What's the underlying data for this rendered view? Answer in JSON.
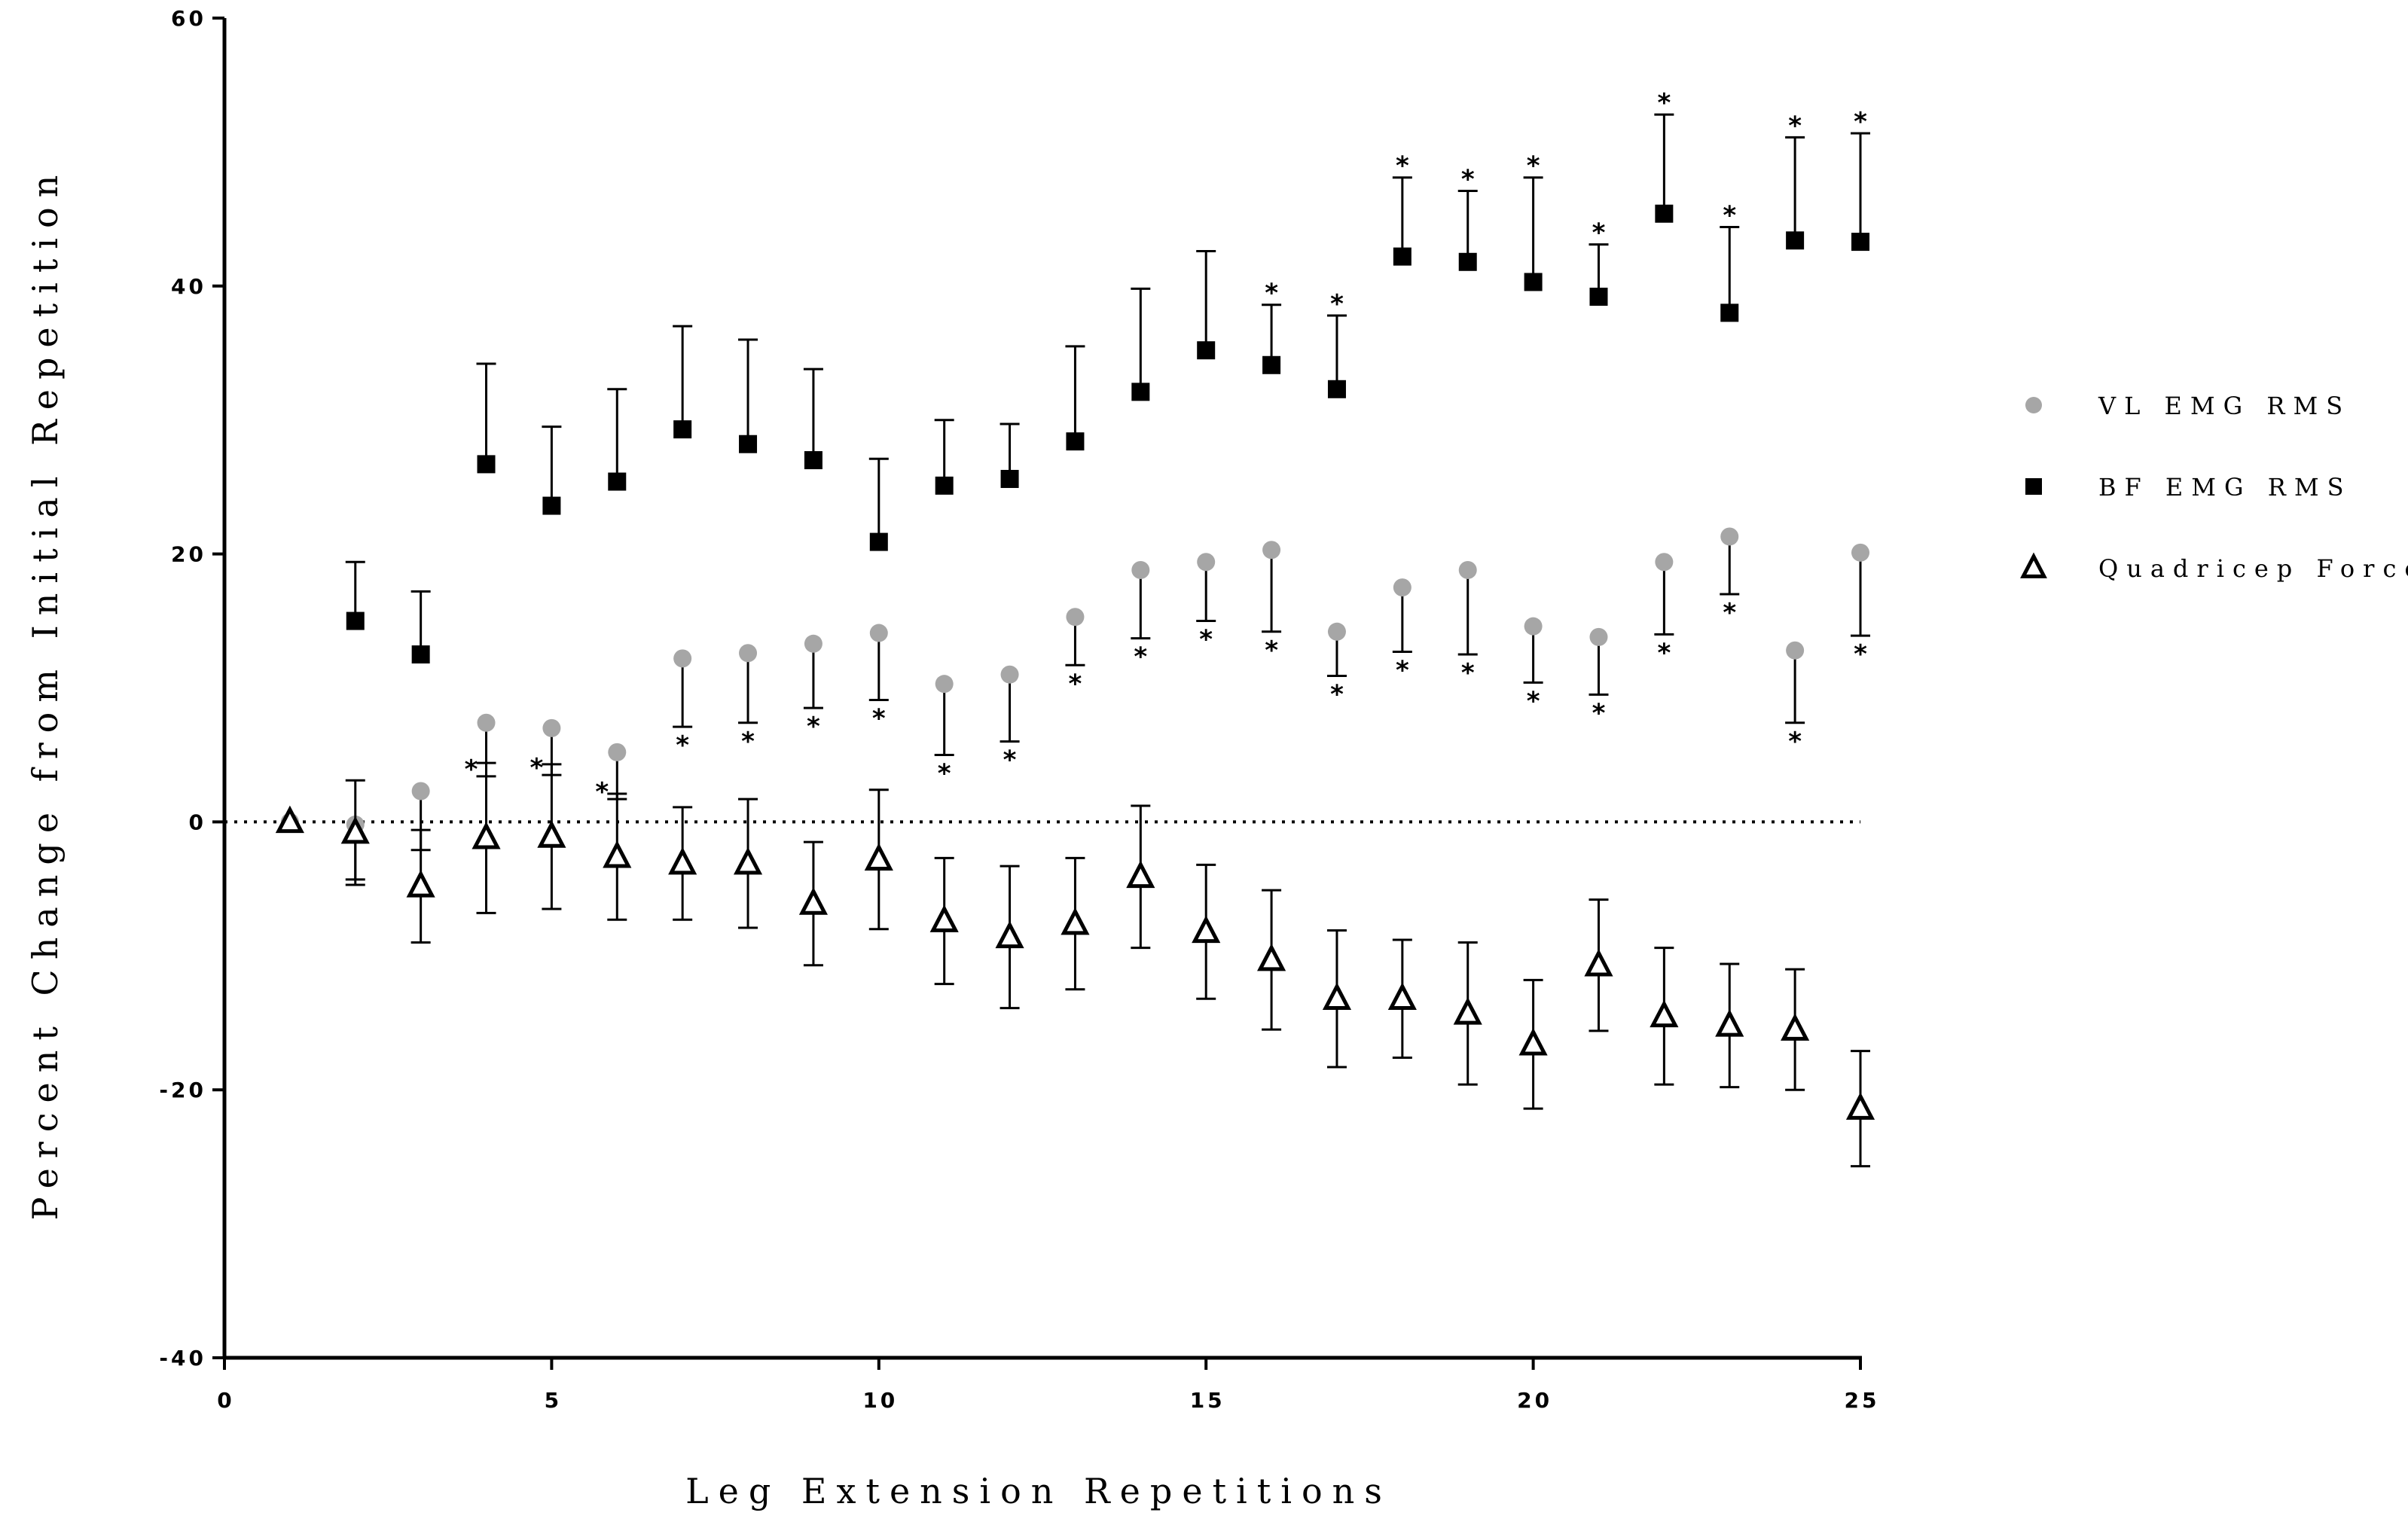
{
  "chart_data": {
    "type": "scatter",
    "title": "",
    "xlabel": "Leg Extension Repetitions",
    "ylabel": "Percent Change from Initial Repetition",
    "xlim": [
      0,
      25
    ],
    "ylim": [
      -40,
      60
    ],
    "xticks": [
      0,
      5,
      10,
      15,
      20,
      25
    ],
    "xtick_labels": [
      "0",
      "5",
      "10",
      "15",
      "20",
      "25"
    ],
    "yticks": [
      -40,
      -20,
      0,
      20,
      40,
      60
    ],
    "ytick_labels": [
      "-40",
      "-20",
      "0",
      "20",
      "40",
      "60"
    ],
    "reference_line": {
      "y": 0,
      "style": "dotted"
    },
    "grid": false,
    "legend_position": "right",
    "series": [
      {
        "name": "VL EMG RMS",
        "marker": "circle",
        "color": "#a6a6a6",
        "errorbar_direction": "down",
        "x": [
          1,
          2,
          3,
          4,
          5,
          6,
          7,
          8,
          9,
          10,
          11,
          12,
          13,
          14,
          15,
          16,
          17,
          18,
          19,
          20,
          21,
          22,
          23,
          24,
          25
        ],
        "y": [
          0,
          -0.2,
          2.3,
          7.4,
          7.0,
          5.2,
          12.2,
          12.6,
          13.3,
          14.1,
          10.3,
          11.0,
          15.3,
          18.8,
          19.4,
          20.3,
          14.2,
          17.5,
          18.8,
          14.6,
          13.8,
          19.4,
          21.3,
          12.8,
          20.1
        ],
        "err": [
          0,
          4.1,
          4.4,
          4.0,
          3.5,
          3.5,
          5.1,
          5.2,
          4.8,
          5.0,
          5.3,
          5.0,
          3.6,
          5.1,
          4.4,
          6.1,
          3.3,
          4.8,
          6.3,
          4.2,
          4.3,
          5.4,
          4.3,
          5.4,
          6.2
        ],
        "significant": [
          false,
          false,
          false,
          true,
          true,
          true,
          true,
          true,
          true,
          true,
          true,
          true,
          true,
          true,
          true,
          true,
          true,
          true,
          true,
          true,
          true,
          true,
          true,
          true,
          true
        ]
      },
      {
        "name": "BF EMG RMS",
        "marker": "square",
        "color": "#000000",
        "errorbar_direction": "up",
        "x": [
          2,
          3,
          4,
          5,
          6,
          7,
          8,
          9,
          10,
          11,
          12,
          13,
          14,
          15,
          16,
          17,
          18,
          19,
          20,
          21,
          22,
          23,
          24,
          25
        ],
        "y": [
          15.0,
          12.5,
          26.7,
          23.6,
          25.4,
          29.3,
          28.2,
          27.0,
          20.9,
          25.1,
          25.6,
          28.4,
          32.1,
          35.2,
          34.1,
          32.3,
          42.2,
          41.8,
          40.3,
          39.2,
          45.4,
          38.0,
          43.4,
          43.3
        ],
        "err": [
          4.4,
          4.7,
          7.5,
          5.9,
          6.9,
          7.7,
          7.8,
          6.8,
          6.2,
          4.9,
          4.1,
          7.1,
          7.7,
          7.4,
          4.5,
          5.5,
          5.9,
          5.3,
          7.8,
          3.9,
          7.4,
          6.4,
          7.7,
          8.1
        ],
        "significant": [
          false,
          false,
          false,
          false,
          false,
          false,
          false,
          false,
          false,
          false,
          false,
          false,
          false,
          false,
          true,
          true,
          true,
          true,
          true,
          true,
          true,
          true,
          true,
          true
        ]
      },
      {
        "name": "Quadricep Force",
        "marker": "triangle",
        "color": "#000000",
        "errorbar_direction": "both",
        "x": [
          1,
          2,
          3,
          4,
          5,
          6,
          7,
          8,
          9,
          10,
          11,
          12,
          13,
          14,
          15,
          16,
          17,
          18,
          19,
          20,
          21,
          22,
          23,
          24,
          25
        ],
        "y": [
          0,
          -0.8,
          -4.8,
          -1.2,
          -1.1,
          -2.6,
          -3.1,
          -3.1,
          -6.1,
          -2.8,
          -7.4,
          -8.6,
          -7.6,
          -4.1,
          -8.2,
          -10.3,
          -13.2,
          -13.2,
          -14.3,
          -16.6,
          -10.7,
          -14.5,
          -15.2,
          -15.5,
          -21.4
        ],
        "err": [
          0,
          3.9,
          4.2,
          5.6,
          5.4,
          4.7,
          4.2,
          4.8,
          4.6,
          5.2,
          4.7,
          5.3,
          4.9,
          5.3,
          5.0,
          5.2,
          5.1,
          4.4,
          5.3,
          4.8,
          4.9,
          5.1,
          4.6,
          4.5,
          4.3
        ],
        "significant": [
          false,
          false,
          false,
          false,
          false,
          false,
          false,
          false,
          false,
          false,
          false,
          false,
          false,
          false,
          false,
          false,
          false,
          false,
          false,
          false,
          false,
          false,
          false,
          false,
          false
        ]
      }
    ],
    "significance_marker": "*"
  }
}
